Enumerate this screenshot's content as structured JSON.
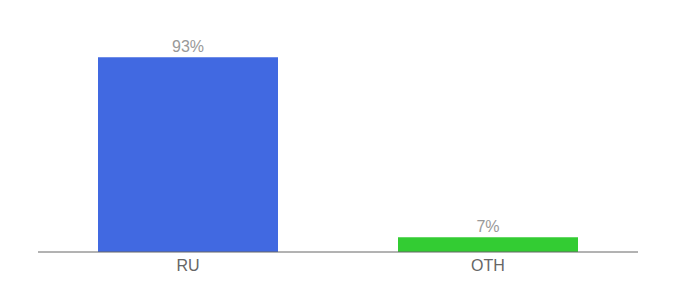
{
  "chart_data": {
    "type": "bar",
    "categories": [
      "RU",
      "OTH"
    ],
    "values": [
      93,
      7
    ],
    "value_labels": [
      "93%",
      "7%"
    ],
    "colors": [
      "#4169e1",
      "#33cc33"
    ],
    "ylim": [
      0,
      105
    ],
    "data_labels": true,
    "tick_labels": "x",
    "grid": false
  }
}
